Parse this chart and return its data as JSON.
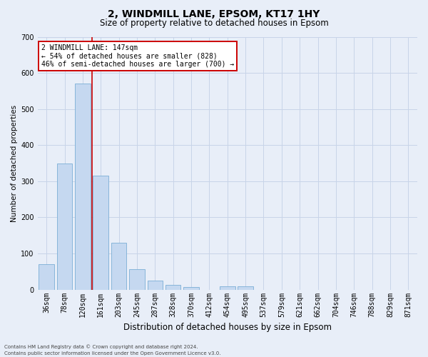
{
  "title_line1": "2, WINDMILL LANE, EPSOM, KT17 1HY",
  "title_line2": "Size of property relative to detached houses in Epsom",
  "xlabel": "Distribution of detached houses by size in Epsom",
  "ylabel": "Number of detached properties",
  "footer_line1": "Contains HM Land Registry data © Crown copyright and database right 2024.",
  "footer_line2": "Contains public sector information licensed under the Open Government Licence v3.0.",
  "bar_labels": [
    "36sqm",
    "78sqm",
    "120sqm",
    "161sqm",
    "203sqm",
    "245sqm",
    "287sqm",
    "328sqm",
    "370sqm",
    "412sqm",
    "454sqm",
    "495sqm",
    "537sqm",
    "579sqm",
    "621sqm",
    "662sqm",
    "704sqm",
    "746sqm",
    "788sqm",
    "829sqm",
    "871sqm"
  ],
  "bar_values": [
    70,
    350,
    570,
    315,
    130,
    57,
    25,
    14,
    7,
    0,
    10,
    10,
    0,
    0,
    0,
    0,
    0,
    0,
    0,
    0,
    0
  ],
  "bar_color": "#c5d8f0",
  "bar_edge_color": "#7aaed6",
  "grid_color": "#c8d4e8",
  "background_color": "#e8eef8",
  "ylim": [
    0,
    700
  ],
  "yticks": [
    0,
    100,
    200,
    300,
    400,
    500,
    600,
    700
  ],
  "red_line_color": "#cc0000",
  "red_line_bin_index": 3,
  "annotation_text_line1": "2 WINDMILL LANE: 147sqm",
  "annotation_text_line2": "← 54% of detached houses are smaller (828)",
  "annotation_text_line3": "46% of semi-detached houses are larger (700) →",
  "annotation_box_facecolor": "#ffffff",
  "annotation_box_edgecolor": "#cc0000",
  "title_fontsize": 10,
  "subtitle_fontsize": 8.5,
  "xlabel_fontsize": 8.5,
  "ylabel_fontsize": 7.5,
  "tick_fontsize": 7,
  "annotation_fontsize": 7,
  "footer_fontsize": 5
}
